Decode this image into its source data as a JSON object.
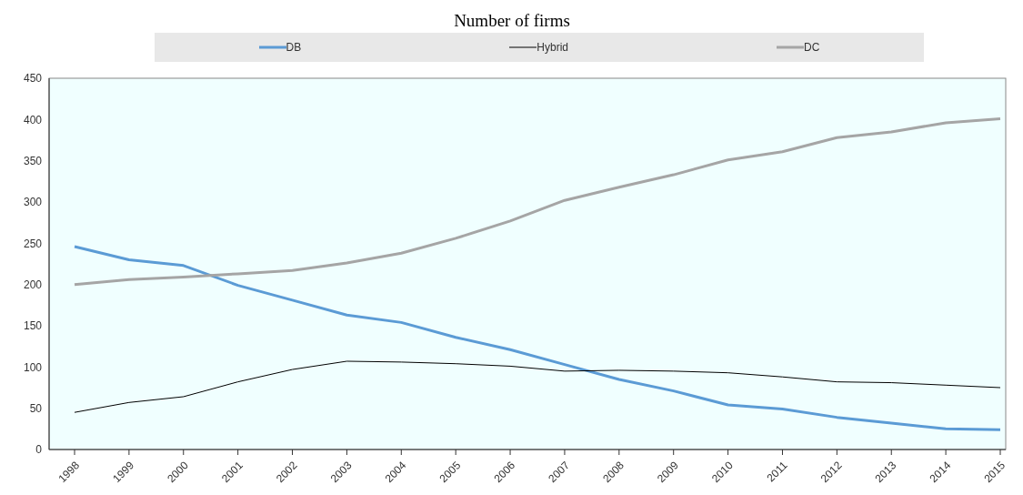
{
  "chart_data": {
    "type": "line",
    "title": "Number of firms",
    "categories": [
      "1998",
      "1999",
      "2000",
      "2001",
      "2002",
      "2003",
      "2004",
      "2005",
      "2006",
      "2007",
      "2008",
      "2009",
      "2010",
      "2011",
      "2012",
      "2013",
      "2014",
      "2015"
    ],
    "series": [
      {
        "name": "DB",
        "color": "#5b9bd5",
        "values": [
          246,
          230,
          223,
          199,
          181,
          163,
          154,
          136,
          121,
          103,
          85,
          71,
          54,
          49,
          39,
          32,
          25,
          24
        ]
      },
      {
        "name": "Hybrid",
        "color": "#000000",
        "values": [
          45,
          57,
          64,
          82,
          97,
          107,
          106,
          104,
          101,
          95,
          96,
          95,
          93,
          88,
          82,
          81,
          78,
          75
        ]
      },
      {
        "name": "DC",
        "color": "#a5a5a5",
        "values": [
          200,
          206,
          209,
          213,
          217,
          226,
          238,
          256,
          277,
          302,
          318,
          333,
          351,
          361,
          378,
          385,
          396,
          401
        ]
      }
    ],
    "ylim": [
      0,
      450
    ],
    "yticks": [
      0,
      50,
      100,
      150,
      200,
      250,
      300,
      350,
      400,
      450
    ],
    "legend": "top",
    "marker": "none",
    "line_style": "solid"
  }
}
